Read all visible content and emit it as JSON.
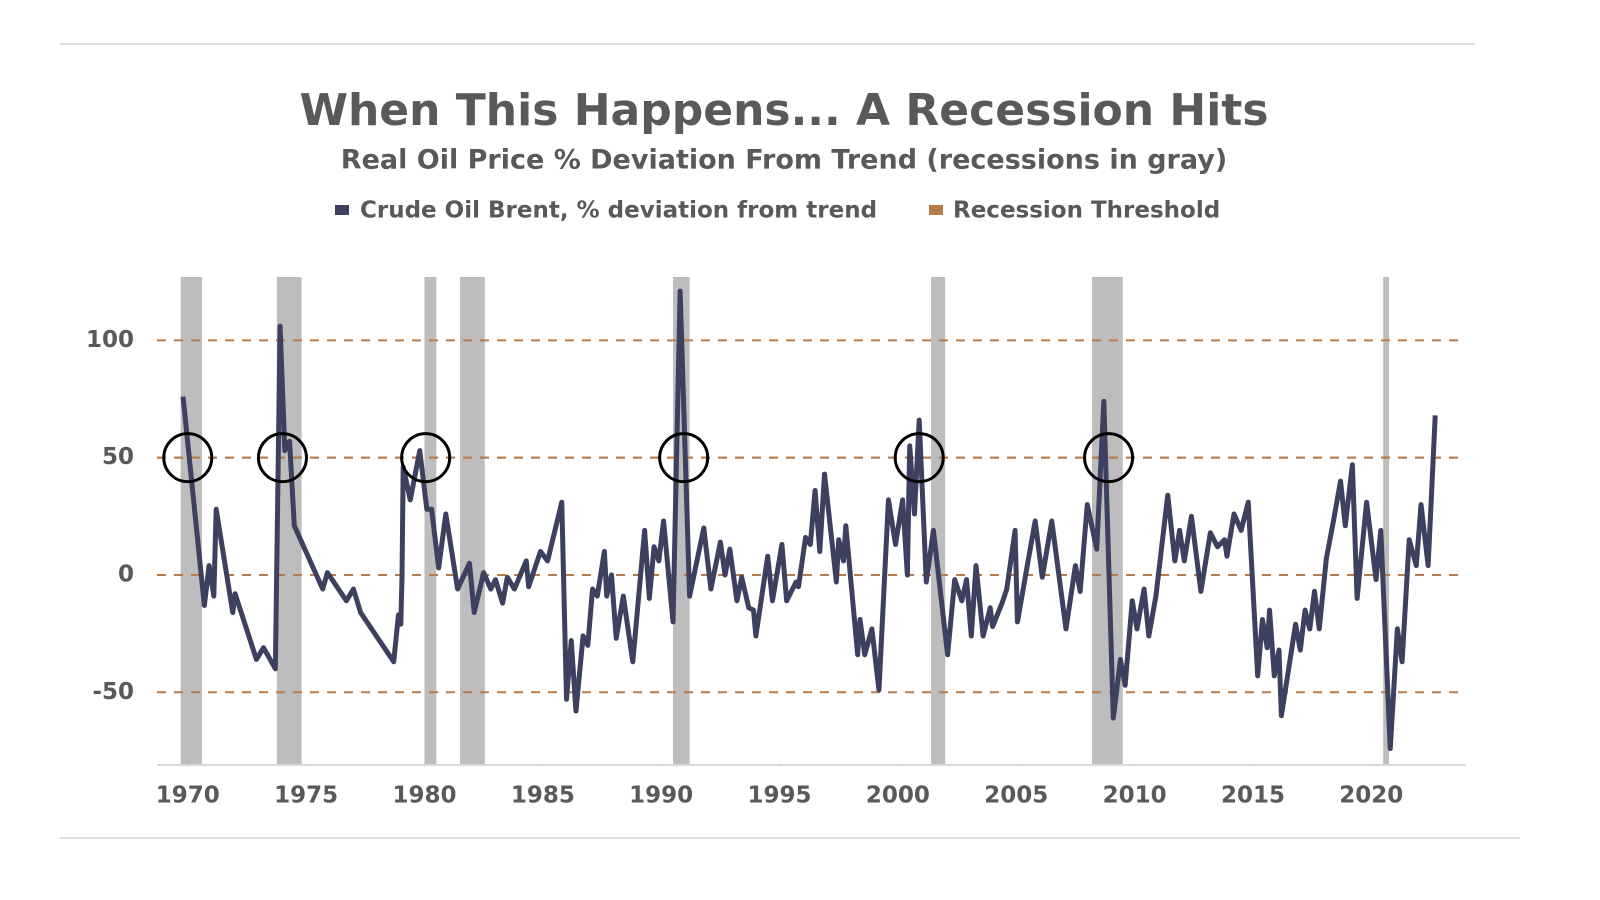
{
  "chart_data": {
    "type": "line",
    "title": "When This Happens... A Recession Hits",
    "subtitle": "Real Oil Price % Deviation From Trend (recessions in gray)",
    "x": [
      1969.8,
      1970.7,
      1970.9,
      1971.1,
      1971.2,
      1971.9,
      1972.0,
      1972.9,
      1973.2,
      1973.7,
      1973.9,
      1974.1,
      1974.3,
      1974.5,
      1975.7,
      1975.9,
      1976.7,
      1977.0,
      1977.3,
      1978.7,
      1978.9,
      1979.0,
      1979.05,
      1979.1,
      1979.4,
      1979.8,
      1980.1,
      1980.3,
      1980.6,
      1980.9,
      1981.4,
      1981.9,
      1982.1,
      1982.5,
      1982.8,
      1983.0,
      1983.3,
      1983.5,
      1983.8,
      1984.3,
      1984.4,
      1984.9,
      1985.2,
      1985.8,
      1986.0,
      1986.2,
      1986.4,
      1986.7,
      1986.9,
      1987.1,
      1987.3,
      1987.6,
      1987.7,
      1987.9,
      1988.1,
      1988.4,
      1988.8,
      1989.3,
      1989.5,
      1989.7,
      1989.9,
      1990.1,
      1990.5,
      1990.8,
      1991.2,
      1991.8,
      1992.1,
      1992.5,
      1992.7,
      1992.9,
      1993.2,
      1993.4,
      1993.7,
      1993.9,
      1994.0,
      1994.5,
      1994.7,
      1995.1,
      1995.3,
      1995.7,
      1995.8,
      1996.1,
      1996.3,
      1996.5,
      1996.7,
      1996.9,
      1997.4,
      1997.5,
      1997.7,
      1997.8,
      1998.3,
      1998.4,
      1998.6,
      1998.9,
      1999.2,
      1999.6,
      1999.9,
      2000.2,
      2000.4,
      2000.5,
      2000.7,
      2000.9,
      2001.2,
      2001.5,
      2002.1,
      2002.4,
      2002.7,
      2002.9,
      2003.1,
      2003.3,
      2003.6,
      2003.9,
      2004.0,
      2004.4,
      2004.6,
      2004.95,
      2005.05,
      2005.5,
      2005.8,
      2006.1,
      2006.5,
      2007.1,
      2007.5,
      2007.7,
      2008.0,
      2008.4,
      2008.7,
      2009.1,
      2009.4,
      2009.6,
      2009.9,
      2010.1,
      2010.4,
      2010.6,
      2010.9,
      2011.4,
      2011.7,
      2011.9,
      2012.1,
      2012.4,
      2012.8,
      2013.2,
      2013.5,
      2013.8,
      2013.9,
      2014.2,
      2014.5,
      2014.8,
      2015.2,
      2015.4,
      2015.6,
      2015.7,
      2015.9,
      2016.1,
      2016.2,
      2016.8,
      2017.0,
      2017.2,
      2017.4,
      2017.6,
      2017.8,
      2018.1,
      2018.4,
      2018.7,
      2018.9,
      2019.2,
      2019.4,
      2019.8,
      2020.2,
      2020.4,
      2020.8,
      2021.1,
      2021.3,
      2021.6,
      2021.9,
      2022.1,
      2022.4,
      2022.7
    ],
    "series": [
      {
        "name": "Crude Oil Brent, % deviation from trend",
        "color": "#3d405e",
        "values": [
          76,
          -13,
          4,
          -9,
          28,
          -16,
          -8,
          -36,
          -31,
          -40,
          106,
          53,
          57,
          21,
          -6,
          1,
          -11,
          -6,
          -16,
          -37,
          -17,
          -21,
          -1,
          46,
          32,
          53,
          28,
          28,
          3,
          26,
          -6,
          5,
          -16,
          1,
          -6,
          -2,
          -12,
          -1,
          -6,
          6,
          -5,
          10,
          6,
          31,
          -53,
          -28,
          -58,
          -26,
          -30,
          -6,
          -9,
          10,
          -9,
          0,
          -27,
          -9,
          -37,
          19,
          -10,
          12,
          6,
          23,
          -20,
          121,
          -9,
          20,
          -6,
          14,
          0,
          11,
          -11,
          -1,
          -14,
          -15,
          -26,
          8,
          -11,
          13,
          -11,
          -3,
          -5,
          16,
          13,
          36,
          10,
          43,
          -3,
          15,
          6,
          21,
          -34,
          -19,
          -34,
          -23,
          -49,
          32,
          13,
          32,
          0,
          55,
          26,
          66,
          -3,
          19,
          -34,
          -2,
          -11,
          -2,
          -26,
          4,
          -26,
          -14,
          -22,
          -12,
          -6,
          19,
          -20,
          6,
          23,
          -1,
          23,
          -23,
          4,
          -7,
          30,
          11,
          74,
          -61,
          -36,
          -47,
          -11,
          -23,
          -6,
          -26,
          -9,
          34,
          6,
          19,
          6,
          25,
          -7,
          18,
          12,
          15,
          8,
          26,
          19,
          31,
          -43,
          -19,
          -31,
          -15,
          -43,
          -32,
          -60,
          -21,
          -32,
          -15,
          -23,
          -7,
          -23,
          7,
          23,
          40,
          21,
          47,
          -10,
          31,
          -2,
          19,
          -74,
          -23,
          -37,
          15,
          4,
          30,
          4,
          68
        ]
      }
    ],
    "threshold": {
      "name": "Recession Threshold",
      "color": "#b87c4c",
      "value": 50
    },
    "recessions": [
      [
        1969.7,
        1970.6
      ],
      [
        1973.76,
        1974.81
      ],
      [
        1980.0,
        1980.5
      ],
      [
        1981.5,
        1982.55
      ],
      [
        1990.5,
        1991.2
      ],
      [
        2001.4,
        2002.0
      ],
      [
        2008.2,
        2009.5
      ],
      [
        2020.5,
        2020.75
      ]
    ],
    "recession_color": "#bdbdbd",
    "highlights": [
      1970.0,
      1974.0,
      1980.05,
      1990.95,
      2000.9,
      2008.9
    ],
    "xlim": [
      1968.7,
      2024
    ],
    "ylim": [
      -81,
      127
    ],
    "xticks": [
      1970,
      1975,
      1980,
      1985,
      1990,
      1995,
      2000,
      2005,
      2010,
      2015,
      2020
    ],
    "yticks": [
      100,
      50,
      0,
      -50
    ],
    "grid": true,
    "grid_color": "#b87c4c"
  }
}
